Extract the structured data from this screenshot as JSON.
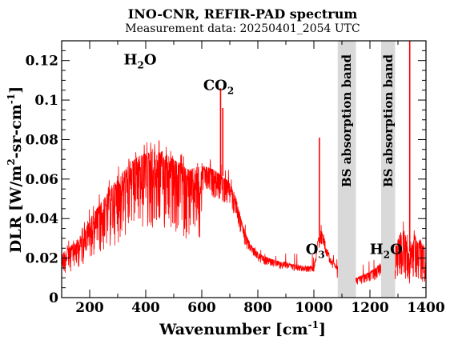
{
  "chart_data": {
    "type": "line",
    "title": "INO-CNR, REFIR-PAD spectrum",
    "subtitle": "Measurement data: 20250401_2054 UTC",
    "xlabel": {
      "main": "Wavenumber [cm",
      "sup": "-1",
      "tail": "]"
    },
    "ylabel": {
      "a": "DLR [W/m",
      "sup1": "2",
      "b": "-sr-cm",
      "sup2": "-1",
      "c": "]"
    },
    "xlim": [
      100,
      1400
    ],
    "ylim": [
      0,
      0.13
    ],
    "xticks": [
      200,
      400,
      600,
      800,
      1000,
      1200,
      1400
    ],
    "yticks": [
      0,
      0.02,
      0.04,
      0.06,
      0.08,
      0.1,
      0.12
    ],
    "xtick_labels": [
      "200",
      "400",
      "600",
      "800",
      "1000",
      "1200",
      "1400"
    ],
    "ytick_labels": [
      "0",
      "0.02",
      "0.04",
      "0.06",
      "0.08",
      "0.1",
      "0.12"
    ],
    "grid": false,
    "line_color": "#ff0000",
    "band_color": "#d9d9d9",
    "bands": [
      {
        "x_range": [
          1085,
          1150
        ],
        "label": "BS absorption band"
      },
      {
        "x_range": [
          1240,
          1290
        ],
        "label": "BS absorption band"
      }
    ],
    "annotations": [
      {
        "base": "H",
        "sub": "2",
        "tail": "O",
        "x": 380,
        "y": 0.118
      },
      {
        "base": "CO",
        "sub": "2",
        "tail": "",
        "x": 660,
        "y": 0.105
      },
      {
        "base": "O",
        "sub": "3",
        "tail": "",
        "x": 1005,
        "y": 0.022
      },
      {
        "base": "H",
        "sub": "2",
        "tail": "O",
        "x": 1258,
        "y": 0.022
      }
    ],
    "series": [
      {
        "x": [
          100,
          120,
          140,
          160,
          180,
          200,
          220,
          240,
          260,
          280,
          300,
          320,
          340,
          360,
          380,
          400,
          420,
          440,
          460,
          480,
          500,
          520,
          540,
          560,
          580,
          600,
          620,
          640,
          660,
          680,
          700,
          720,
          740,
          760,
          780,
          800,
          820,
          840,
          860,
          880,
          900,
          920,
          940,
          960,
          980,
          1000,
          1015,
          1030,
          1045,
          1060,
          1075,
          1085,
          1150,
          1165,
          1180,
          1200,
          1220,
          1240,
          1290,
          1300,
          1310,
          1320,
          1330,
          1340,
          1350,
          1360,
          1370,
          1380,
          1390,
          1400
        ],
        "y": [
          0.022,
          0.025,
          0.027,
          0.03,
          0.034,
          0.039,
          0.044,
          0.048,
          0.052,
          0.057,
          0.06,
          0.064,
          0.067,
          0.07,
          0.072,
          0.073,
          0.074,
          0.074,
          0.074,
          0.072,
          0.07,
          0.068,
          0.066,
          0.065,
          0.066,
          0.067,
          0.066,
          0.065,
          0.063,
          0.061,
          0.058,
          0.052,
          0.04,
          0.031,
          0.026,
          0.023,
          0.021,
          0.02,
          0.019,
          0.018,
          0.018,
          0.017,
          0.017,
          0.016,
          0.016,
          0.016,
          0.03,
          0.034,
          0.026,
          0.02,
          0.017,
          0.016,
          0.01,
          0.011,
          0.012,
          0.013,
          0.015,
          0.018,
          0.026,
          0.03,
          0.033,
          0.035,
          0.03,
          0.022,
          0.028,
          0.032,
          0.028,
          0.03,
          0.025,
          0.028
        ],
        "spikes": [
          {
            "x": 667,
            "y": 0.106
          },
          {
            "x": 675,
            "y": 0.096
          },
          {
            "x": 1020,
            "y": 0.081
          },
          {
            "x": 1342,
            "y": 0.13
          }
        ]
      }
    ]
  }
}
